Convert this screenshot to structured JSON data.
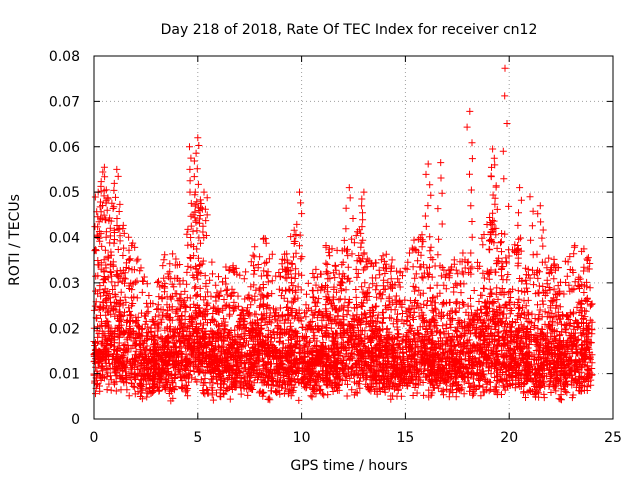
{
  "chart_data": {
    "type": "scatter",
    "title": "Day 218 of 2018, Rate Of TEC Index for receiver cn12",
    "xlabel": "GPS time / hours",
    "ylabel": "ROTI / TECUs",
    "xlim": [
      0,
      25
    ],
    "ylim": [
      0,
      0.08
    ],
    "xticks": [
      0,
      5,
      10,
      15,
      20,
      25
    ],
    "yticks": [
      0,
      0.01,
      0.02,
      0.03,
      0.04,
      0.05,
      0.06,
      0.07,
      0.08
    ],
    "xtick_labels": [
      "0",
      "5",
      "10",
      "15",
      "20",
      "25"
    ],
    "ytick_labels": [
      "0",
      "0.01",
      "0.02",
      "0.03",
      "0.04",
      "0.05",
      "0.06",
      "0.07",
      "0.08"
    ],
    "grid": true,
    "marker": "plus",
    "color": "#ff0000",
    "series": [
      {
        "name": "cn12",
        "x_range": [
          0,
          24
        ],
        "base_level": 0.014,
        "typical_max": 0.035,
        "peaks": [
          {
            "x": 0.2,
            "y": 0.05
          },
          {
            "x": 0.5,
            "y": 0.0555
          },
          {
            "x": 1.1,
            "y": 0.055
          },
          {
            "x": 4.6,
            "y": 0.06
          },
          {
            "x": 5.0,
            "y": 0.062
          },
          {
            "x": 5.3,
            "y": 0.05
          },
          {
            "x": 9.9,
            "y": 0.05
          },
          {
            "x": 12.3,
            "y": 0.051
          },
          {
            "x": 13.0,
            "y": 0.05
          },
          {
            "x": 16.1,
            "y": 0.0562
          },
          {
            "x": 16.7,
            "y": 0.0565
          },
          {
            "x": 18.1,
            "y": 0.0678
          },
          {
            "x": 19.2,
            "y": 0.0595
          },
          {
            "x": 19.3,
            "y": 0.056
          },
          {
            "x": 19.8,
            "y": 0.0773
          },
          {
            "x": 20.5,
            "y": 0.051
          },
          {
            "x": 21.0,
            "y": 0.049
          },
          {
            "x": 21.5,
            "y": 0.047
          }
        ]
      }
    ]
  }
}
